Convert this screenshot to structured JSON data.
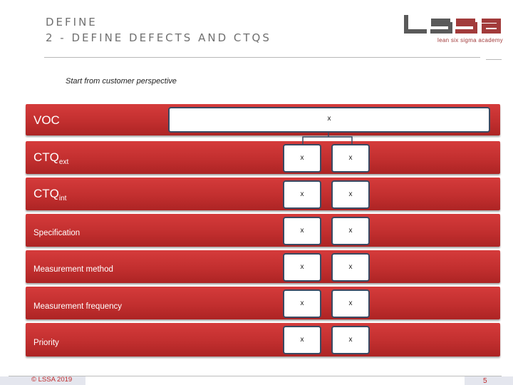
{
  "header": {
    "title_line1": "DEFINE",
    "title_line2": "2 - DEFINE DEFECTS AND CTQS",
    "logo_text": "LSSA",
    "logo_subtitle": "lean six sigma academy"
  },
  "subtitle": "Start from customer perspective",
  "voc": {
    "label": "VOC",
    "value": "x"
  },
  "rows": [
    {
      "label": "CTQ",
      "sub": "ext",
      "col1": "x",
      "col2": "x"
    },
    {
      "label": "CTQ",
      "sub": "int",
      "col1": "x",
      "col2": "x"
    },
    {
      "label": "Specification",
      "col1": "x",
      "col2": "x"
    },
    {
      "label": "Measurement method",
      "col1": "x",
      "col2": "x"
    },
    {
      "label": "Measurement frequency",
      "col1": "x",
      "col2": "x"
    },
    {
      "label": "Priority",
      "col1": "x",
      "col2": "x"
    }
  ],
  "footer": {
    "copyright": "© LSSA 2019",
    "page_number": "5"
  },
  "colors": {
    "row_red": "#c93434",
    "box_border": "#3a4a63",
    "logo_red": "#a23b3b",
    "logo_dark": "#5a5a5a"
  }
}
